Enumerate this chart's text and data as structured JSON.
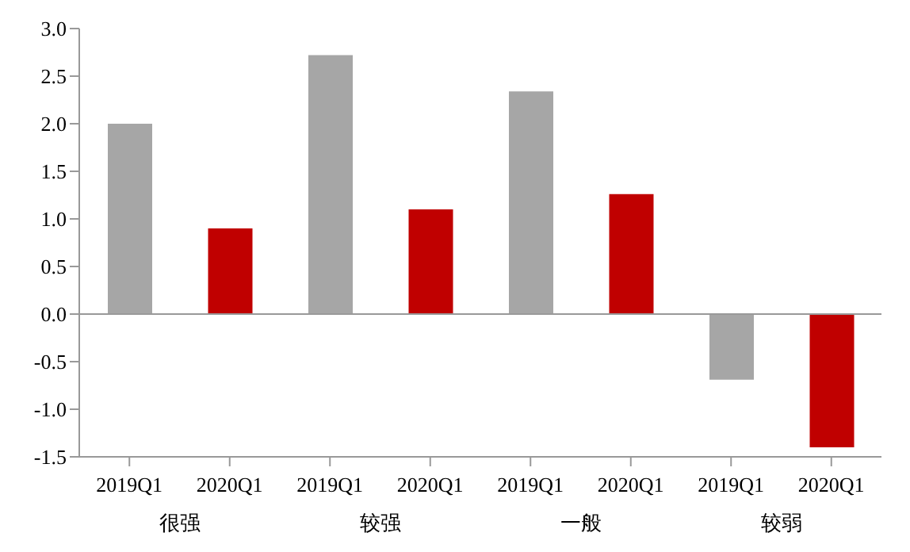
{
  "chart_data": {
    "type": "bar",
    "categories": [
      "2019Q1",
      "2020Q1",
      "2019Q1",
      "2020Q1",
      "2019Q1",
      "2020Q1",
      "2019Q1",
      "2020Q1"
    ],
    "values": [
      2.0,
      0.9,
      2.72,
      1.1,
      2.34,
      1.26,
      -0.69,
      -1.4
    ],
    "colors": [
      "#a6a6a6",
      "#c00000",
      "#a6a6a6",
      "#c00000",
      "#a6a6a6",
      "#c00000",
      "#a6a6a6",
      "#c00000"
    ],
    "annotations": [
      "很强",
      "较强",
      "一般",
      "较弱"
    ],
    "ylim": [
      -1.5,
      3.0
    ],
    "yticks": [
      {
        "value": -1.5,
        "label": "-1.5"
      },
      {
        "value": -1.0,
        "label": "-1.0"
      },
      {
        "value": -0.5,
        "label": "-0.5"
      },
      {
        "value": 0,
        "label": "0.0"
      },
      {
        "value": 0.5,
        "label": "0.5"
      },
      {
        "value": 1.0,
        "label": "1.0"
      },
      {
        "value": 1.5,
        "label": "1.5"
      },
      {
        "value": 2.0,
        "label": "2.0"
      },
      {
        "value": 2.5,
        "label": "2.5"
      },
      {
        "value": 3.0,
        "label": "3.0"
      }
    ],
    "ref_lines": [
      {
        "axis": "y",
        "value": 0,
        "color": "#999999"
      }
    ],
    "grid": false,
    "legend": false
  }
}
